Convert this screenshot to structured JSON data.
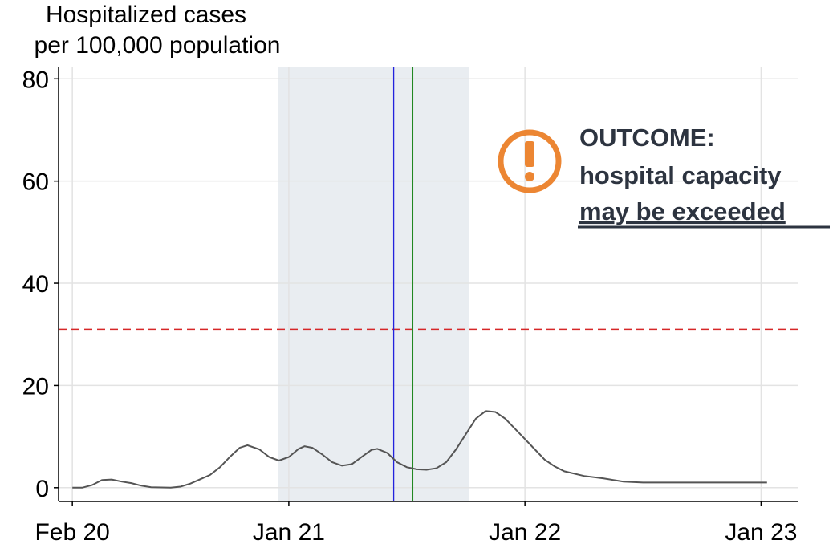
{
  "chart_data": {
    "type": "line",
    "ylabel": [
      "Hospitalized cases",
      "per 100,000 population"
    ],
    "x": [
      0,
      0.5,
      1,
      1.5,
      2,
      2.5,
      3,
      3.5,
      4,
      5,
      5.5,
      6,
      7,
      7.5,
      8,
      8.5,
      8.9,
      9.5,
      10,
      10.5,
      11,
      11.5,
      11.8,
      12.2,
      12.7,
      13.2,
      13.7,
      14.2,
      14.7,
      15.2,
      15.5,
      16,
      16.5,
      17,
      17.5,
      18,
      18.5,
      19,
      19.5,
      20,
      20.5,
      21,
      21.5,
      22,
      22.5,
      23,
      23.5,
      24,
      24.5,
      25,
      26,
      27,
      28,
      29,
      30,
      32,
      34,
      35.3
    ],
    "values": [
      0,
      0,
      0.5,
      1.5,
      1.6,
      1.2,
      0.9,
      0.4,
      0.1,
      0,
      0.2,
      0.8,
      2.5,
      4,
      6,
      7.8,
      8.3,
      7.5,
      6,
      5.3,
      6,
      7.6,
      8.1,
      7.8,
      6.5,
      5,
      4.3,
      4.6,
      6,
      7.4,
      7.6,
      6.8,
      5,
      4,
      3.6,
      3.5,
      3.8,
      5,
      7.5,
      10.5,
      13.5,
      15,
      14.8,
      13.5,
      11.5,
      9.5,
      7.5,
      5.5,
      4.2,
      3.2,
      2.3,
      1.8,
      1.2,
      1,
      1,
      1,
      1,
      1
    ],
    "color": "#555555",
    "xlim": [
      -0.7,
      36.9
    ],
    "ylim": [
      -2.7,
      82.4
    ],
    "xticks": [
      {
        "value": 0,
        "label": "Feb 20"
      },
      {
        "value": 11,
        "label": "Jan 21"
      },
      {
        "value": 23,
        "label": "Jan 22"
      },
      {
        "value": 35,
        "label": "Jan 23"
      }
    ],
    "yticks": [
      0,
      20,
      40,
      60,
      80
    ],
    "grid": true,
    "shaded_region": {
      "xlim": [
        10.45,
        20.16
      ],
      "color": "#e9edf1"
    },
    "vlines": [
      {
        "x": 16.33,
        "color": "#2222dd"
      },
      {
        "x": 17.3,
        "color": "#228822"
      }
    ],
    "hline": {
      "y": 31,
      "color": "#d62728",
      "dashed": true
    },
    "annotation": [
      "OUTCOME:",
      "hospital capacity",
      "may be exceeded"
    ]
  }
}
